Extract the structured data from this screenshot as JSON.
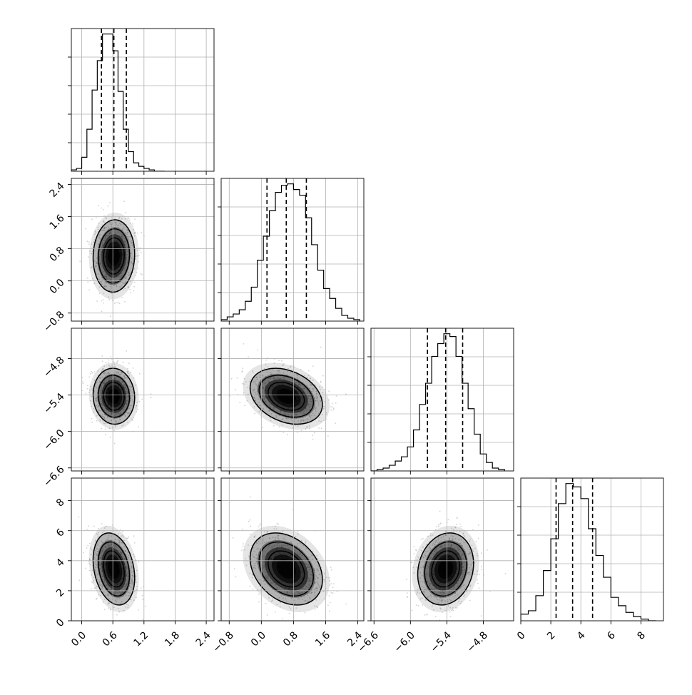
{
  "chart_data": {
    "type": "corner",
    "parameters": [
      "",
      "",
      "",
      ""
    ],
    "colors": {
      "frame": "#000000",
      "grid": "#b0b0b0",
      "hist": "#000000",
      "quantile": "#000000",
      "contour": "#000000",
      "density": "#000000",
      "scatter": "#9a9a9a"
    },
    "grid": true,
    "ranges": [
      [
        -0.2,
        2.55
      ],
      [
        -1.0,
        2.55
      ],
      [
        -6.65,
        -4.3
      ],
      [
        0,
        9.5
      ]
    ],
    "ticks": [
      {
        "values": [
          0.0,
          0.6,
          1.2,
          1.8,
          2.4
        ],
        "labels": [
          "0.0",
          "0.6",
          "1.2",
          "1.8",
          "2.4"
        ]
      },
      {
        "values": [
          -0.8,
          0.0,
          0.8,
          1.6,
          2.4
        ],
        "labels": [
          "−0.8",
          "0.0",
          "0.8",
          "1.6",
          "2.4"
        ]
      },
      {
        "values": [
          -6.6,
          -6.0,
          -5.4,
          -4.8
        ],
        "labels": [
          "−6.6",
          "−6.0",
          "−5.4",
          "−4.8"
        ]
      },
      {
        "values": [
          0,
          2,
          4,
          6,
          8
        ],
        "labels": [
          "0",
          "2",
          "4",
          "6",
          "8"
        ]
      }
    ],
    "marginals": [
      {
        "param": 0,
        "quantiles": [
          0.38,
          0.62,
          0.86
        ],
        "bins": [
          -0.2,
          -0.1,
          0.0,
          0.1,
          0.2,
          0.3,
          0.4,
          0.5,
          0.6,
          0.7,
          0.8,
          0.9,
          1.0,
          1.1,
          1.2,
          1.3,
          1.4,
          1.5,
          1.6
        ],
        "counts": [
          0.01,
          0.02,
          0.1,
          0.3,
          0.58,
          0.79,
          0.98,
          0.98,
          0.86,
          0.57,
          0.3,
          0.14,
          0.06,
          0.035,
          0.02,
          0.01,
          0.0,
          0.0
        ]
      },
      {
        "param": 1,
        "quantiles": [
          0.14,
          0.62,
          1.12
        ],
        "bins": [
          -1.0,
          -0.85,
          -0.7,
          -0.55,
          -0.4,
          -0.25,
          -0.1,
          0.05,
          0.2,
          0.35,
          0.5,
          0.65,
          0.8,
          0.95,
          1.1,
          1.25,
          1.4,
          1.55,
          1.7,
          1.85,
          2.0,
          2.15,
          2.3,
          2.45
        ],
        "counts": [
          0.01,
          0.03,
          0.05,
          0.08,
          0.14,
          0.24,
          0.43,
          0.6,
          0.78,
          0.91,
          0.96,
          0.97,
          0.93,
          0.89,
          0.73,
          0.54,
          0.36,
          0.23,
          0.16,
          0.09,
          0.04,
          0.02,
          0.01
        ]
      },
      {
        "param": 2,
        "quantiles": [
          -5.72,
          -5.42,
          -5.14
        ],
        "bins": [
          -6.65,
          -6.55,
          -6.45,
          -6.35,
          -6.25,
          -6.15,
          -6.05,
          -5.95,
          -5.85,
          -5.75,
          -5.65,
          -5.55,
          -5.45,
          -5.35,
          -5.25,
          -5.15,
          -5.05,
          -4.95,
          -4.85,
          -4.75,
          -4.65,
          -4.55,
          -4.45
        ],
        "counts": [
          0.0,
          0.01,
          0.02,
          0.04,
          0.07,
          0.1,
          0.17,
          0.29,
          0.47,
          0.62,
          0.81,
          0.9,
          0.97,
          0.95,
          0.81,
          0.62,
          0.44,
          0.26,
          0.12,
          0.06,
          0.02,
          0.01
        ]
      },
      {
        "param": 3,
        "quantiles": [
          2.35,
          3.45,
          4.78
        ],
        "bins": [
          0.0,
          0.5,
          1.0,
          1.5,
          2.0,
          2.5,
          3.0,
          3.5,
          4.0,
          4.5,
          5.0,
          5.5,
          6.0,
          6.5,
          7.0,
          7.5,
          8.0,
          8.5,
          9.0
        ],
        "counts": [
          0.04,
          0.06,
          0.15,
          0.3,
          0.49,
          0.7,
          0.82,
          0.8,
          0.73,
          0.55,
          0.39,
          0.26,
          0.14,
          0.09,
          0.05,
          0.025,
          0.01,
          0.0
        ]
      }
    ],
    "joint": [
      {
        "x": 0,
        "y": 1,
        "center": [
          0.62,
          0.62
        ],
        "sd": [
          0.2,
          0.45
        ],
        "corr": 0.05
      },
      {
        "x": 0,
        "y": 2,
        "center": [
          0.62,
          -5.42
        ],
        "sd": [
          0.2,
          0.23
        ],
        "corr": -0.05
      },
      {
        "x": 1,
        "y": 2,
        "center": [
          0.62,
          -5.42
        ],
        "sd": [
          0.45,
          0.23
        ],
        "corr": -0.3
      },
      {
        "x": 0,
        "y": 3,
        "center": [
          0.62,
          3.45
        ],
        "sd": [
          0.2,
          1.2
        ],
        "corr": -0.25
      },
      {
        "x": 1,
        "y": 3,
        "center": [
          0.62,
          3.45
        ],
        "sd": [
          0.45,
          1.2
        ],
        "corr": -0.3
      },
      {
        "x": 2,
        "y": 3,
        "center": [
          -5.42,
          3.45
        ],
        "sd": [
          0.23,
          1.2
        ],
        "corr": 0.15
      }
    ],
    "contour_levels": [
      0.5,
      1.0,
      1.5,
      2.0
    ]
  }
}
